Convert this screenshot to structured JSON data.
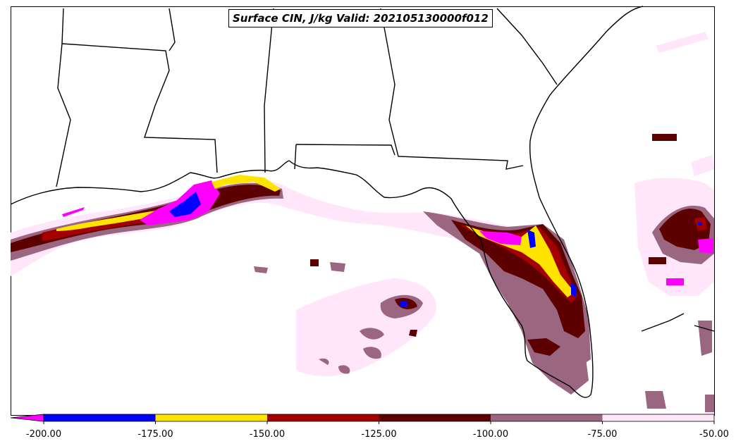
{
  "title": "Surface CIN, J/kg Valid: 202105130000f012",
  "colorbar": {
    "bins": [
      {
        "from": -200,
        "to": -175,
        "color": "#0000ff"
      },
      {
        "from": -175,
        "to": -150,
        "color": "#ffe400"
      },
      {
        "from": -150,
        "to": -125,
        "color": "#a50000"
      },
      {
        "from": -125,
        "to": -100,
        "color": "#5c0000"
      },
      {
        "from": -100,
        "to": -75,
        "color": "#9a6680"
      },
      {
        "from": -75,
        "to": -50,
        "color": "#ffe6fb"
      }
    ],
    "extend_color": "#ff00ff",
    "ticks": [
      "-200.00",
      "-175.00",
      "-150.00",
      "-125.00",
      "-100.00",
      "-75.00",
      "-50.00"
    ]
  }
}
